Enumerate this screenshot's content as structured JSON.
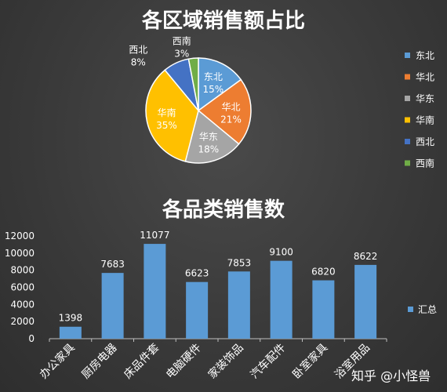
{
  "chart_data": [
    {
      "type": "pie",
      "title": "各区域销售额占比",
      "slices": [
        {
          "name": "东北",
          "value": 15,
          "label": "15%",
          "color": "#5B9BD5"
        },
        {
          "name": "华北",
          "value": 21,
          "label": "21%",
          "color": "#ED7D31"
        },
        {
          "name": "华东",
          "value": 18,
          "label": "18%",
          "color": "#A5A5A5"
        },
        {
          "name": "华南",
          "value": 35,
          "label": "35%",
          "color": "#FFC000"
        },
        {
          "name": "西北",
          "value": 8,
          "label": "8%",
          "color": "#4472C4"
        },
        {
          "name": "西南",
          "value": 3,
          "label": "3%",
          "color": "#70AD47"
        }
      ],
      "legend_position": "right"
    },
    {
      "type": "bar",
      "title": "各品类销售数",
      "categories": [
        "办公家具",
        "厨房电器",
        "床品件套",
        "电脑硬件",
        "家装饰品",
        "汽车配件",
        "卧室家具",
        "浴室用品"
      ],
      "series": [
        {
          "name": "汇总",
          "values": [
            1398,
            7683,
            11077,
            6623,
            7853,
            9100,
            6820,
            8622
          ],
          "color": "#5B9BD5"
        }
      ],
      "ylim": [
        0,
        12000
      ],
      "yticks": [
        "0",
        "2000",
        "4000",
        "6000",
        "8000",
        "10000",
        "12000"
      ],
      "grid": false,
      "legend_position": "right"
    }
  ],
  "watermark": "知乎 @小怪兽"
}
